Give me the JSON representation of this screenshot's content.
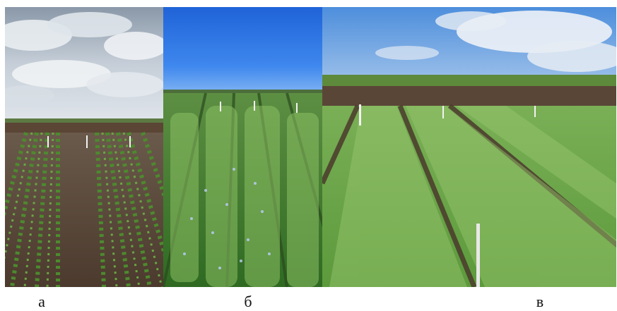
{
  "figure": {
    "panels": [
      {
        "label": "а",
        "description_icon": "field-photo-young-seedlings"
      },
      {
        "label": "б",
        "description_icon": "field-photo-flowering-plants"
      },
      {
        "label": "в",
        "description_icon": "field-photo-mature-plots"
      }
    ]
  },
  "colors": {
    "sky_cloudy": "#c7d3df",
    "sky_blue": "#2f76e6",
    "soil": "#5a4a3c",
    "green_dark": "#3e6f2d",
    "green_light": "#7fae55"
  }
}
